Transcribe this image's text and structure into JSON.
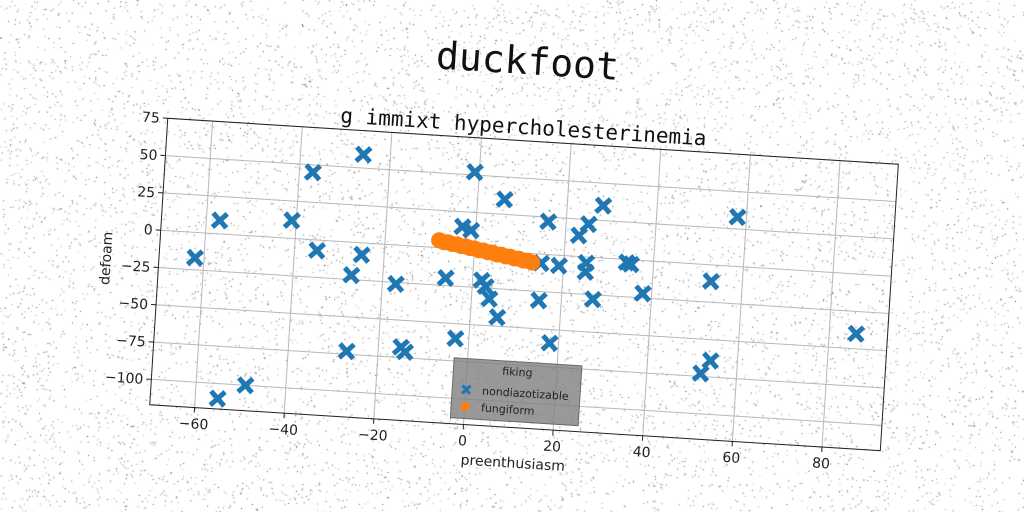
{
  "chart_data": {
    "type": "scatter",
    "title": "duckfoot",
    "subtitle": "g immixt hypercholesterinemia",
    "xlabel": "preenthusiasm",
    "ylabel": "defoam",
    "xlim": [
      -70,
      93
    ],
    "ylim": [
      -117,
      75
    ],
    "xticks": [
      -60,
      -40,
      -20,
      0,
      20,
      40,
      60,
      80
    ],
    "yticks": [
      75,
      50,
      25,
      0,
      -25,
      -50,
      -75,
      -100
    ],
    "xtick_labels": [
      "−60",
      "−40",
      "−20",
      "0",
      "20",
      "40",
      "60",
      "80"
    ],
    "ytick_labels": [
      "75",
      "50",
      "25",
      "0",
      "−25",
      "−50",
      "−75",
      "−100"
    ],
    "grid": true,
    "legend": {
      "title": "fiking",
      "location": "lower center",
      "entries": [
        "nondiazotizable",
        "fungiform"
      ]
    },
    "series": [
      {
        "name": "nondiazotizable",
        "marker": "x",
        "color": "#1f77b4",
        "points": [
          [
            -62,
            -17
          ],
          [
            -57,
            9
          ],
          [
            -55,
            -110
          ],
          [
            -49,
            -100
          ],
          [
            -41,
            12
          ],
          [
            -37,
            45
          ],
          [
            -35,
            -7
          ],
          [
            -27,
            -22
          ],
          [
            -26,
            59
          ],
          [
            -25,
            -8
          ],
          [
            -27,
            -73
          ],
          [
            -17,
            -26
          ],
          [
            -15,
            -68
          ],
          [
            -14,
            -71
          ],
          [
            -6,
            -20
          ],
          [
            -3,
            -60
          ],
          [
            -3,
            15
          ],
          [
            -1,
            13
          ],
          [
            -1,
            52
          ],
          [
            2,
            -20
          ],
          [
            3,
            -24
          ],
          [
            4,
            -32
          ],
          [
            6,
            -44
          ],
          [
            6,
            35
          ],
          [
            15,
            -31
          ],
          [
            16,
            22
          ],
          [
            15,
            -6
          ],
          [
            18,
            -59
          ],
          [
            19,
            -7
          ],
          [
            23,
            14
          ],
          [
            25,
            22
          ],
          [
            25,
            -4
          ],
          [
            25,
            -10
          ],
          [
            27,
            -28
          ],
          [
            28,
            35
          ],
          [
            34,
            -2
          ],
          [
            35,
            -3
          ],
          [
            38,
            -22
          ],
          [
            52,
            -73
          ],
          [
            53,
            -11
          ],
          [
            54,
            -64
          ],
          [
            58,
            33
          ],
          [
            86,
            -40
          ]
        ]
      },
      {
        "name": "fungiform",
        "marker": "o",
        "color": "#ff7f0e",
        "points": [
          [
            -8,
            5
          ],
          [
            -7,
            4
          ],
          [
            -6,
            4
          ],
          [
            -5,
            3
          ],
          [
            -4,
            3
          ],
          [
            -3,
            2
          ],
          [
            -2,
            2
          ],
          [
            -1,
            1
          ],
          [
            0,
            1
          ],
          [
            1,
            0
          ],
          [
            2,
            0
          ],
          [
            3,
            -1
          ],
          [
            4,
            -1
          ],
          [
            5,
            -2
          ],
          [
            6,
            -2
          ],
          [
            7,
            -3
          ],
          [
            8,
            -3
          ],
          [
            9,
            -4
          ],
          [
            10,
            -4
          ],
          [
            11,
            -5
          ],
          [
            12,
            -5
          ],
          [
            13,
            -6
          ]
        ]
      }
    ]
  }
}
